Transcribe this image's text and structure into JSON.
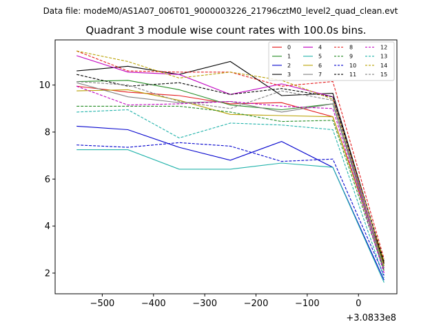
{
  "suptitle": "Data file: modeM0/AS1A07_006T01_9000003226_21796cztM0_level2_quad_clean.evt",
  "chart_data": {
    "type": "line",
    "title": "Quadrant 3 module wise count rates with 100.0s bins.",
    "xlabel": "",
    "ylabel": "",
    "x": [
      -550,
      -450,
      -350,
      -250,
      -150,
      -50,
      50
    ],
    "x_offset_label": "+3.0833e8",
    "xlim": [
      -592,
      75
    ],
    "ylim": [
      1.12,
      11.92
    ],
    "xticks": [
      -500,
      -400,
      -300,
      -200,
      -100,
      0
    ],
    "xtick_labels": [
      "−500",
      "−400",
      "−300",
      "−200",
      "−100",
      "0"
    ],
    "yticks": [
      2,
      4,
      6,
      8,
      10
    ],
    "ytick_labels": [
      "2",
      "4",
      "6",
      "8",
      "10"
    ],
    "grid": false,
    "legend": {
      "location": "upper-right",
      "columns": 4
    },
    "series": [
      {
        "name": "0",
        "color": "#e41a1c",
        "dash": "solid",
        "values": [
          9.95,
          9.7,
          9.55,
          9.2,
          9.25,
          8.65,
          2.45
        ]
      },
      {
        "name": "1",
        "color": "#228b22",
        "dash": "solid",
        "values": [
          10.15,
          10.2,
          9.8,
          9.15,
          8.95,
          9.2,
          2.3
        ]
      },
      {
        "name": "2",
        "color": "#0000cd",
        "dash": "solid",
        "values": [
          8.25,
          8.1,
          7.35,
          6.8,
          7.6,
          6.5,
          1.7
        ]
      },
      {
        "name": "3",
        "color": "#000000",
        "dash": "solid",
        "values": [
          10.6,
          10.8,
          10.45,
          11.0,
          9.55,
          9.65,
          2.4
        ]
      },
      {
        "name": "4",
        "color": "#c000c0",
        "dash": "solid",
        "values": [
          11.25,
          10.55,
          10.45,
          9.6,
          10.05,
          9.5,
          2.2
        ]
      },
      {
        "name": "5",
        "color": "#20b2aa",
        "dash": "solid",
        "values": [
          7.25,
          7.25,
          6.42,
          6.42,
          6.68,
          6.5,
          1.6
        ]
      },
      {
        "name": "6",
        "color": "#b8a000",
        "dash": "solid",
        "values": [
          9.75,
          9.8,
          9.35,
          8.75,
          8.7,
          8.65,
          2.3
        ]
      },
      {
        "name": "7",
        "color": "#808080",
        "dash": "solid",
        "values": [
          10.1,
          9.5,
          9.25,
          9.3,
          8.85,
          9.2,
          2.1
        ]
      },
      {
        "name": "8",
        "color": "#e41a1c",
        "dash": "dashed",
        "values": [
          11.45,
          10.6,
          10.55,
          10.55,
          9.95,
          10.15,
          2.6
        ]
      },
      {
        "name": "9",
        "color": "#228b22",
        "dash": "dashed",
        "values": [
          9.1,
          9.1,
          9.1,
          8.85,
          8.45,
          8.5,
          2.1
        ]
      },
      {
        "name": "10",
        "color": "#0000cd",
        "dash": "dashed",
        "values": [
          7.45,
          7.35,
          7.55,
          7.4,
          6.75,
          6.85,
          1.9
        ]
      },
      {
        "name": "11",
        "color": "#000000",
        "dash": "dashed",
        "values": [
          10.45,
          9.95,
          10.1,
          9.6,
          9.85,
          9.5,
          2.5
        ]
      },
      {
        "name": "12",
        "color": "#c000c0",
        "dash": "dashed",
        "values": [
          9.95,
          9.15,
          9.2,
          9.3,
          9.1,
          9.0,
          2.0
        ]
      },
      {
        "name": "13",
        "color": "#20b2aa",
        "dash": "dashed",
        "values": [
          8.85,
          8.95,
          7.75,
          8.38,
          8.3,
          8.1,
          1.8
        ]
      },
      {
        "name": "14",
        "color": "#b8a000",
        "dash": "dashed",
        "values": [
          11.45,
          11.0,
          10.3,
          10.55,
          10.2,
          9.4,
          2.5
        ]
      },
      {
        "name": "15",
        "color": "#808080",
        "dash": "dashed",
        "values": [
          10.15,
          10.0,
          9.3,
          9.0,
          9.75,
          9.35,
          2.2
        ]
      }
    ]
  }
}
